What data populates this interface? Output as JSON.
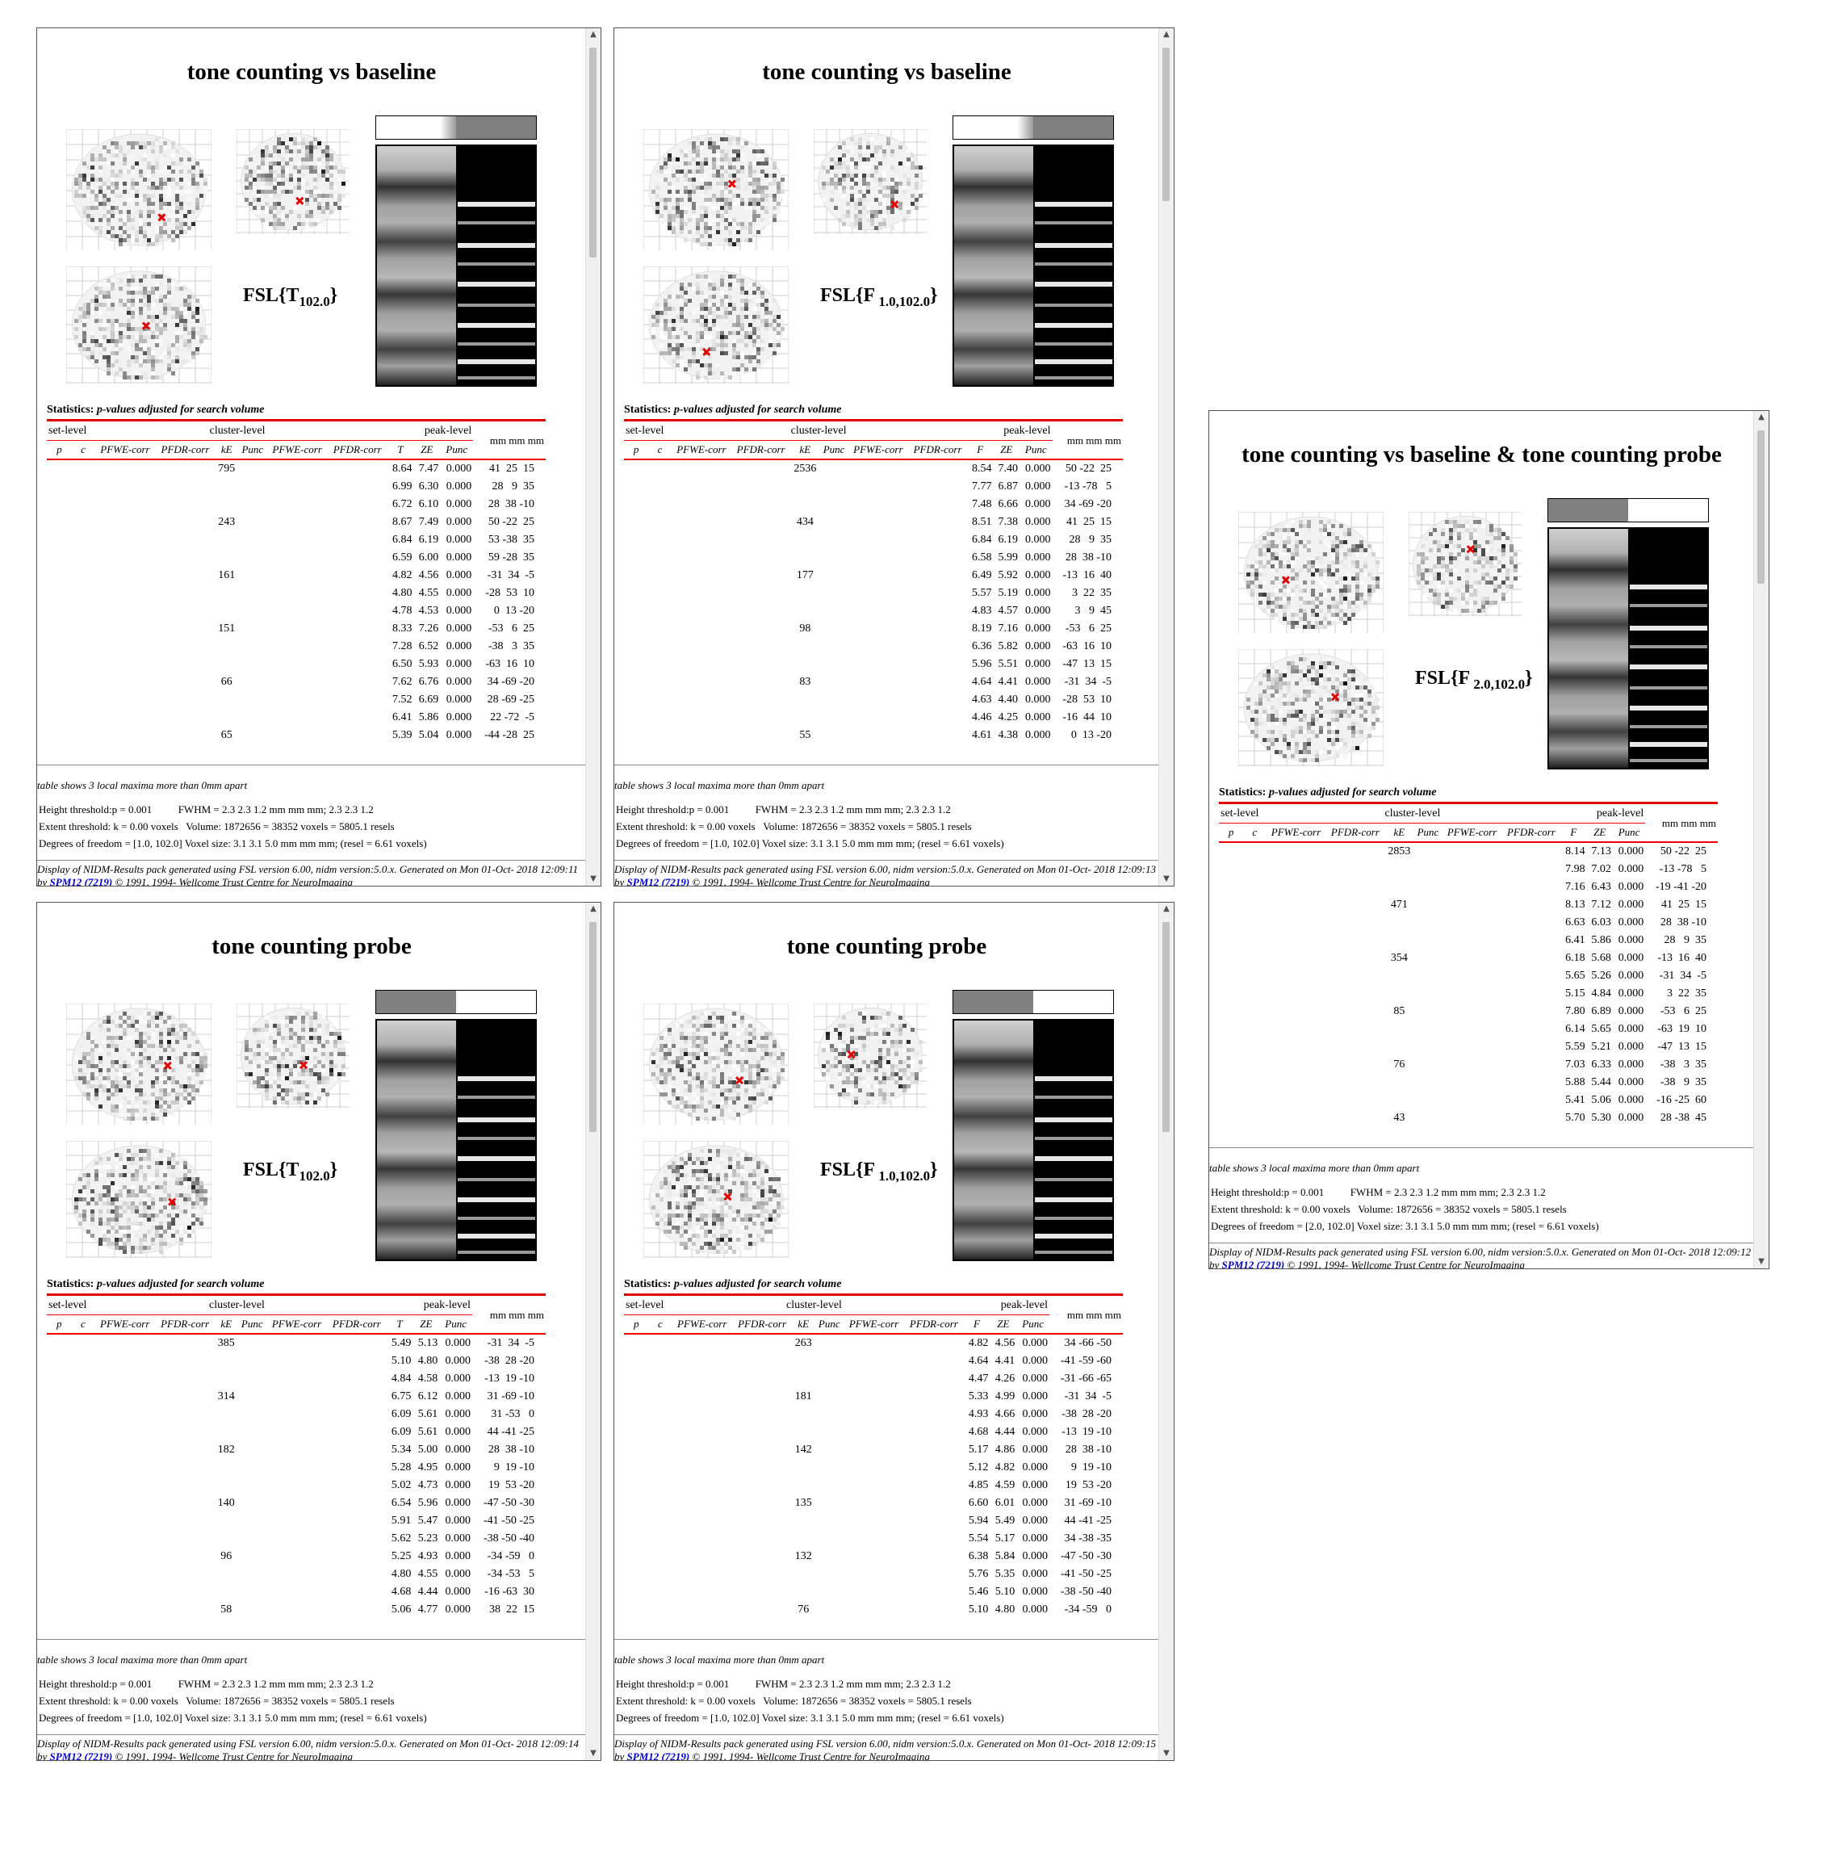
{
  "common": {
    "stats_label": "Statistics:",
    "stats_sub": "p-values adjusted for search volume",
    "set_level": "set-level",
    "cluster_level": "cluster-level",
    "peak_level": "peak-level",
    "mm": "mm mm mm",
    "col_p": "p",
    "col_c": "c",
    "col_fwe": "PFWE-corr",
    "col_fdr": "PFDR-corr",
    "col_ke": "kE",
    "col_punc": "Punc",
    "col_ze": "ZE",
    "note": "table shows 3 local maxima more than 0mm apart",
    "extent": "Extent threshold: k = 0.00 voxels   Volume: 1872656 = 38352 voxels = 5805.1 resels",
    "height": "Height threshold:p = 0.001          FWHM = 2.3 2.3 1.2 mm mm mm; 2.3 2.3 1.2",
    "footer_pre": "Display of NIDM-Results pack generated using FSL version 6.00, nidm version:5.0.x. Generated on Mon 01-Oct-",
    "footer_link": "SPM12 (7219)",
    "footer_post": "© 1991, 1994- Wellcome Trust Centre for NeuroImaging"
  },
  "panels": [
    {
      "title": "tone counting vs baseline",
      "fsl_main": "FSL{T",
      "fsl_sub": "102.0",
      "fsl_close": "}",
      "stat_col": "T",
      "dof": "Degrees of freedom = [1.0, 102.0] Voxel size: 3.1 3.1 5.0 mm mm mm; (resel = 6.61 voxels)",
      "footer_time": "2018 12:09:11 by",
      "rows": [
        {
          "k": "795",
          "s": "8.64",
          "z": "7.47",
          "pu": "0.000",
          "xyz": "41  25  15"
        },
        {
          "k": "",
          "s": "6.99",
          "z": "6.30",
          "pu": "0.000",
          "xyz": "28   9  35"
        },
        {
          "k": "",
          "s": "6.72",
          "z": "6.10",
          "pu": "0.000",
          "xyz": "28  38 -10"
        },
        {
          "k": "243",
          "s": "8.67",
          "z": "7.49",
          "pu": "0.000",
          "xyz": "50 -22  25"
        },
        {
          "k": "",
          "s": "6.84",
          "z": "6.19",
          "pu": "0.000",
          "xyz": "53 -38  35"
        },
        {
          "k": "",
          "s": "6.59",
          "z": "6.00",
          "pu": "0.000",
          "xyz": "59 -28  35"
        },
        {
          "k": "161",
          "s": "4.82",
          "z": "4.56",
          "pu": "0.000",
          "xyz": "-31  34  -5"
        },
        {
          "k": "",
          "s": "4.80",
          "z": "4.55",
          "pu": "0.000",
          "xyz": "-28  53  10"
        },
        {
          "k": "",
          "s": "4.78",
          "z": "4.53",
          "pu": "0.000",
          "xyz": "0  13 -20"
        },
        {
          "k": "151",
          "s": "8.33",
          "z": "7.26",
          "pu": "0.000",
          "xyz": "-53   6  25"
        },
        {
          "k": "",
          "s": "7.28",
          "z": "6.52",
          "pu": "0.000",
          "xyz": "-38   3  35"
        },
        {
          "k": "",
          "s": "6.50",
          "z": "5.93",
          "pu": "0.000",
          "xyz": "-63  16  10"
        },
        {
          "k": "66",
          "s": "7.62",
          "z": "6.76",
          "pu": "0.000",
          "xyz": "34 -69 -20"
        },
        {
          "k": "",
          "s": "7.52",
          "z": "6.69",
          "pu": "0.000",
          "xyz": "28 -69 -25"
        },
        {
          "k": "",
          "s": "6.41",
          "z": "5.86",
          "pu": "0.000",
          "xyz": "22 -72  -5"
        },
        {
          "k": "65",
          "s": "5.39",
          "z": "5.04",
          "pu": "0.000",
          "xyz": "-44 -28  25"
        }
      ]
    },
    {
      "title": "tone counting vs baseline",
      "fsl_main": "FSL{F",
      "fsl_sub": " 1.0,102.0",
      "fsl_close": "}",
      "stat_col": "F",
      "dof": "Degrees of freedom = [1.0, 102.0] Voxel size: 3.1 3.1 5.0 mm mm mm; (resel = 6.61 voxels)",
      "footer_time": "2018 12:09:13 by",
      "rows": [
        {
          "k": "2536",
          "s": "8.54",
          "z": "7.40",
          "pu": "0.000",
          "xyz": "50 -22  25"
        },
        {
          "k": "",
          "s": "7.77",
          "z": "6.87",
          "pu": "0.000",
          "xyz": "-13 -78   5"
        },
        {
          "k": "",
          "s": "7.48",
          "z": "6.66",
          "pu": "0.000",
          "xyz": "34 -69 -20"
        },
        {
          "k": "434",
          "s": "8.51",
          "z": "7.38",
          "pu": "0.000",
          "xyz": "41  25  15"
        },
        {
          "k": "",
          "s": "6.84",
          "z": "6.19",
          "pu": "0.000",
          "xyz": "28   9  35"
        },
        {
          "k": "",
          "s": "6.58",
          "z": "5.99",
          "pu": "0.000",
          "xyz": "28  38 -10"
        },
        {
          "k": "177",
          "s": "6.49",
          "z": "5.92",
          "pu": "0.000",
          "xyz": "-13  16  40"
        },
        {
          "k": "",
          "s": "5.57",
          "z": "5.19",
          "pu": "0.000",
          "xyz": "3  22  35"
        },
        {
          "k": "",
          "s": "4.83",
          "z": "4.57",
          "pu": "0.000",
          "xyz": "3   9  45"
        },
        {
          "k": "98",
          "s": "8.19",
          "z": "7.16",
          "pu": "0.000",
          "xyz": "-53   6  25"
        },
        {
          "k": "",
          "s": "6.36",
          "z": "5.82",
          "pu": "0.000",
          "xyz": "-63  16  10"
        },
        {
          "k": "",
          "s": "5.96",
          "z": "5.51",
          "pu": "0.000",
          "xyz": "-47  13  15"
        },
        {
          "k": "83",
          "s": "4.64",
          "z": "4.41",
          "pu": "0.000",
          "xyz": "-31  34  -5"
        },
        {
          "k": "",
          "s": "4.63",
          "z": "4.40",
          "pu": "0.000",
          "xyz": "-28  53  10"
        },
        {
          "k": "",
          "s": "4.46",
          "z": "4.25",
          "pu": "0.000",
          "xyz": "-16  44  10"
        },
        {
          "k": "55",
          "s": "4.61",
          "z": "4.38",
          "pu": "0.000",
          "xyz": "0  13 -20"
        }
      ]
    },
    {
      "title": "tone counting vs baseline & tone counting probe",
      "fsl_main": "FSL{F",
      "fsl_sub": " 2.0,102.0",
      "fsl_close": "}",
      "stat_col": "F",
      "dof": "Degrees of freedom = [2.0, 102.0] Voxel size: 3.1 3.1 5.0 mm mm mm; (resel = 6.61 voxels)",
      "footer_time": "2018 12:09:12 by",
      "rows": [
        {
          "k": "2853",
          "s": "8.14",
          "z": "7.13",
          "pu": "0.000",
          "xyz": "50 -22  25"
        },
        {
          "k": "",
          "s": "7.98",
          "z": "7.02",
          "pu": "0.000",
          "xyz": "-13 -78   5"
        },
        {
          "k": "",
          "s": "7.16",
          "z": "6.43",
          "pu": "0.000",
          "xyz": "-19 -41 -20"
        },
        {
          "k": "471",
          "s": "8.13",
          "z": "7.12",
          "pu": "0.000",
          "xyz": "41  25  15"
        },
        {
          "k": "",
          "s": "6.63",
          "z": "6.03",
          "pu": "0.000",
          "xyz": "28  38 -10"
        },
        {
          "k": "",
          "s": "6.41",
          "z": "5.86",
          "pu": "0.000",
          "xyz": "28   9  35"
        },
        {
          "k": "354",
          "s": "6.18",
          "z": "5.68",
          "pu": "0.000",
          "xyz": "-13  16  40"
        },
        {
          "k": "",
          "s": "5.65",
          "z": "5.26",
          "pu": "0.000",
          "xyz": "-31  34  -5"
        },
        {
          "k": "",
          "s": "5.15",
          "z": "4.84",
          "pu": "0.000",
          "xyz": "3  22  35"
        },
        {
          "k": "85",
          "s": "7.80",
          "z": "6.89",
          "pu": "0.000",
          "xyz": "-53   6  25"
        },
        {
          "k": "",
          "s": "6.14",
          "z": "5.65",
          "pu": "0.000",
          "xyz": "-63  19  10"
        },
        {
          "k": "",
          "s": "5.59",
          "z": "5.21",
          "pu": "0.000",
          "xyz": "-47  13  15"
        },
        {
          "k": "76",
          "s": "7.03",
          "z": "6.33",
          "pu": "0.000",
          "xyz": "-38   3  35"
        },
        {
          "k": "",
          "s": "5.88",
          "z": "5.44",
          "pu": "0.000",
          "xyz": "-38   9  35"
        },
        {
          "k": "",
          "s": "5.41",
          "z": "5.06",
          "pu": "0.000",
          "xyz": "-16 -25  60"
        },
        {
          "k": "43",
          "s": "5.70",
          "z": "5.30",
          "pu": "0.000",
          "xyz": "28 -38  45"
        }
      ]
    },
    {
      "title": "tone counting probe",
      "fsl_main": "FSL{T",
      "fsl_sub": "102.0",
      "fsl_close": "}",
      "stat_col": "T",
      "dof": "Degrees of freedom = [1.0, 102.0] Voxel size: 3.1 3.1 5.0 mm mm mm; (resel = 6.61 voxels)",
      "footer_time": "2018 12:09:14 by",
      "rows": [
        {
          "k": "385",
          "s": "5.49",
          "z": "5.13",
          "pu": "0.000",
          "xyz": "-31  34  -5"
        },
        {
          "k": "",
          "s": "5.10",
          "z": "4.80",
          "pu": "0.000",
          "xyz": "-38  28 -20"
        },
        {
          "k": "",
          "s": "4.84",
          "z": "4.58",
          "pu": "0.000",
          "xyz": "-13  19 -10"
        },
        {
          "k": "314",
          "s": "6.75",
          "z": "6.12",
          "pu": "0.000",
          "xyz": "31 -69 -10"
        },
        {
          "k": "",
          "s": "6.09",
          "z": "5.61",
          "pu": "0.000",
          "xyz": "31 -53   0"
        },
        {
          "k": "",
          "s": "6.09",
          "z": "5.61",
          "pu": "0.000",
          "xyz": "44 -41 -25"
        },
        {
          "k": "182",
          "s": "5.34",
          "z": "5.00",
          "pu": "0.000",
          "xyz": "28  38 -10"
        },
        {
          "k": "",
          "s": "5.28",
          "z": "4.95",
          "pu": "0.000",
          "xyz": "9  19 -10"
        },
        {
          "k": "",
          "s": "5.02",
          "z": "4.73",
          "pu": "0.000",
          "xyz": "19  53 -20"
        },
        {
          "k": "140",
          "s": "6.54",
          "z": "5.96",
          "pu": "0.000",
          "xyz": "-47 -50 -30"
        },
        {
          "k": "",
          "s": "5.91",
          "z": "5.47",
          "pu": "0.000",
          "xyz": "-41 -50 -25"
        },
        {
          "k": "",
          "s": "5.62",
          "z": "5.23",
          "pu": "0.000",
          "xyz": "-38 -50 -40"
        },
        {
          "k": "96",
          "s": "5.25",
          "z": "4.93",
          "pu": "0.000",
          "xyz": "-34 -59   0"
        },
        {
          "k": "",
          "s": "4.80",
          "z": "4.55",
          "pu": "0.000",
          "xyz": "-34 -53   5"
        },
        {
          "k": "",
          "s": "4.68",
          "z": "4.44",
          "pu": "0.000",
          "xyz": "-16 -63  30"
        },
        {
          "k": "58",
          "s": "5.06",
          "z": "4.77",
          "pu": "0.000",
          "xyz": "38  22  15"
        }
      ]
    },
    {
      "title": "tone counting probe",
      "fsl_main": "FSL{F",
      "fsl_sub": " 1.0,102.0",
      "fsl_close": "}",
      "stat_col": "F",
      "dof": "Degrees of freedom = [1.0, 102.0] Voxel size: 3.1 3.1 5.0 mm mm mm; (resel = 6.61 voxels)",
      "footer_time": "2018 12:09:15 by",
      "rows": [
        {
          "k": "263",
          "s": "4.82",
          "z": "4.56",
          "pu": "0.000",
          "xyz": "34 -66 -50"
        },
        {
          "k": "",
          "s": "4.64",
          "z": "4.41",
          "pu": "0.000",
          "xyz": "-41 -59 -60"
        },
        {
          "k": "",
          "s": "4.47",
          "z": "4.26",
          "pu": "0.000",
          "xyz": "-31 -66 -65"
        },
        {
          "k": "181",
          "s": "5.33",
          "z": "4.99",
          "pu": "0.000",
          "xyz": "-31  34  -5"
        },
        {
          "k": "",
          "s": "4.93",
          "z": "4.66",
          "pu": "0.000",
          "xyz": "-38  28 -20"
        },
        {
          "k": "",
          "s": "4.68",
          "z": "4.44",
          "pu": "0.000",
          "xyz": "-13  19 -10"
        },
        {
          "k": "142",
          "s": "5.17",
          "z": "4.86",
          "pu": "0.000",
          "xyz": "28  38 -10"
        },
        {
          "k": "",
          "s": "5.12",
          "z": "4.82",
          "pu": "0.000",
          "xyz": "9  19 -10"
        },
        {
          "k": "",
          "s": "4.85",
          "z": "4.59",
          "pu": "0.000",
          "xyz": "19  53 -20"
        },
        {
          "k": "135",
          "s": "6.60",
          "z": "6.01",
          "pu": "0.000",
          "xyz": "31 -69 -10"
        },
        {
          "k": "",
          "s": "5.94",
          "z": "5.49",
          "pu": "0.000",
          "xyz": "44 -41 -25"
        },
        {
          "k": "",
          "s": "5.54",
          "z": "5.17",
          "pu": "0.000",
          "xyz": "34 -38 -35"
        },
        {
          "k": "132",
          "s": "6.38",
          "z": "5.84",
          "pu": "0.000",
          "xyz": "-47 -50 -30"
        },
        {
          "k": "",
          "s": "5.76",
          "z": "5.35",
          "pu": "0.000",
          "xyz": "-41 -50 -25"
        },
        {
          "k": "",
          "s": "5.46",
          "z": "5.10",
          "pu": "0.000",
          "xyz": "-38 -50 -40"
        },
        {
          "k": "76",
          "s": "5.10",
          "z": "4.80",
          "pu": "0.000",
          "xyz": "-34 -59   0"
        }
      ]
    }
  ]
}
